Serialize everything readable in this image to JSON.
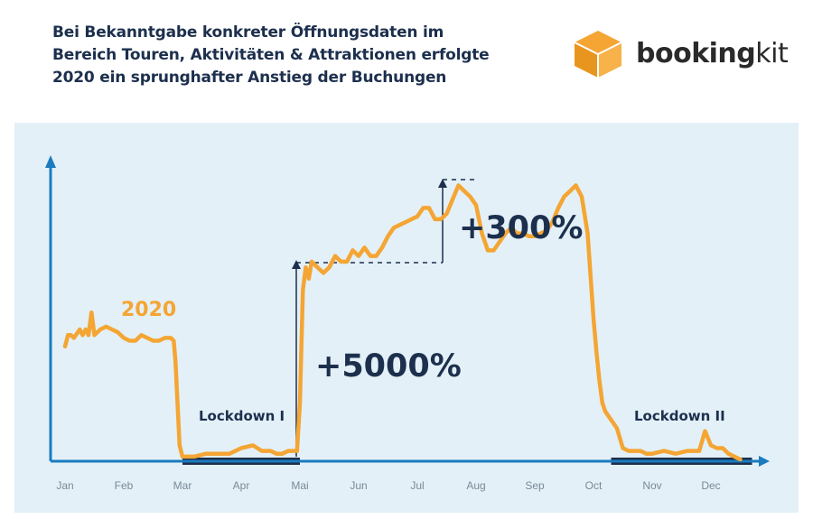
{
  "header": {
    "title_lines": [
      "Bei Bekanntgabe konkreter Öffnungsdaten im",
      "Bereich Touren, Aktivitäten & Attraktionen erfolgte",
      "2020 ein sprunghafter Anstieg der Buchungen"
    ]
  },
  "logo": {
    "text_bold": "booking",
    "text_light": "kit",
    "icon": "cube-icon",
    "color": "#f4a533"
  },
  "chart_data": {
    "type": "line",
    "title": "Bei Bekanntgabe konkreter Öffnungsdaten im Bereich Touren, Aktivitäten & Attraktionen erfolgte 2020 ein sprunghafter Anstieg der Buchungen",
    "categories": [
      "Jan",
      "Feb",
      "Mar",
      "Apr",
      "Mai",
      "Jun",
      "Jul",
      "Aug",
      "Sep",
      "Oct",
      "Nov",
      "Dec"
    ],
    "xlabel": "",
    "ylabel": "",
    "y_axis_ticks": false,
    "grid": false,
    "series": [
      {
        "name": "2020",
        "color": "#f4a533",
        "x": [
          0,
          0.05,
          0.1,
          0.15,
          0.25,
          0.3,
          0.35,
          0.4,
          0.45,
          0.5,
          0.6,
          0.7,
          0.8,
          0.9,
          1.0,
          1.1,
          1.2,
          1.3,
          1.4,
          1.5,
          1.6,
          1.7,
          1.8,
          1.85,
          1.88,
          1.95,
          2.0,
          2.2,
          2.4,
          2.6,
          2.8,
          3.0,
          3.2,
          3.35,
          3.5,
          3.6,
          3.7,
          3.8,
          3.9,
          3.95,
          4.0,
          4.05,
          4.1,
          4.15,
          4.2,
          4.3,
          4.4,
          4.5,
          4.6,
          4.7,
          4.8,
          4.9,
          5.0,
          5.1,
          5.2,
          5.3,
          5.4,
          5.5,
          5.6,
          5.7,
          5.8,
          5.9,
          6.0,
          6.1,
          6.2,
          6.3,
          6.4,
          6.5,
          6.6,
          6.7,
          6.8,
          6.9,
          7.0,
          7.1,
          7.2,
          7.3,
          7.4,
          7.5,
          7.6,
          7.7,
          7.8,
          7.9,
          8.0,
          8.1,
          8.2,
          8.3,
          8.4,
          8.5,
          8.6,
          8.7,
          8.8,
          8.9,
          9.0,
          9.05,
          9.1,
          9.15,
          9.2,
          9.3,
          9.4,
          9.5,
          9.6,
          9.7,
          9.8,
          9.9,
          10.0,
          10.2,
          10.4,
          10.6,
          10.8,
          10.9,
          11.0,
          11.1,
          11.2,
          11.3,
          11.4,
          11.5
        ],
        "values": [
          0.4,
          0.44,
          0.44,
          0.43,
          0.46,
          0.44,
          0.46,
          0.44,
          0.52,
          0.44,
          0.46,
          0.47,
          0.46,
          0.45,
          0.43,
          0.42,
          0.42,
          0.44,
          0.43,
          0.42,
          0.42,
          0.43,
          0.43,
          0.42,
          0.35,
          0.05,
          0.01,
          0.01,
          0.02,
          0.02,
          0.02,
          0.04,
          0.05,
          0.03,
          0.03,
          0.02,
          0.02,
          0.03,
          0.03,
          0.03,
          0.2,
          0.6,
          0.68,
          0.64,
          0.7,
          0.68,
          0.66,
          0.68,
          0.72,
          0.7,
          0.7,
          0.74,
          0.72,
          0.75,
          0.72,
          0.72,
          0.75,
          0.79,
          0.82,
          0.83,
          0.84,
          0.85,
          0.86,
          0.89,
          0.89,
          0.85,
          0.85,
          0.87,
          0.92,
          0.97,
          0.95,
          0.93,
          0.9,
          0.8,
          0.74,
          0.74,
          0.77,
          0.8,
          0.82,
          0.8,
          0.8,
          0.79,
          0.79,
          0.8,
          0.81,
          0.84,
          0.89,
          0.93,
          0.95,
          0.97,
          0.93,
          0.8,
          0.5,
          0.38,
          0.28,
          0.2,
          0.17,
          0.14,
          0.11,
          0.04,
          0.03,
          0.03,
          0.03,
          0.02,
          0.02,
          0.03,
          0.02,
          0.03,
          0.03,
          0.1,
          0.05,
          0.04,
          0.04,
          0.02,
          0.01,
          0.0
        ]
      }
    ],
    "annotations": [
      {
        "text": "2020"
      },
      {
        "text": "Lockdown I"
      },
      {
        "text": "Lockdown II"
      },
      {
        "text": "+5000%"
      },
      {
        "text": "+300%"
      }
    ],
    "lockdown_ranges": [
      [
        2.0,
        4.0
      ],
      [
        9.3,
        11.7
      ]
    ]
  },
  "colors": {
    "chart_bg": "#e3f0f7",
    "line": "#f4a533",
    "axis": "#1a7bbf",
    "dark_text": "#1c2f4d",
    "lockdown_bar": "#1c2f4d"
  }
}
